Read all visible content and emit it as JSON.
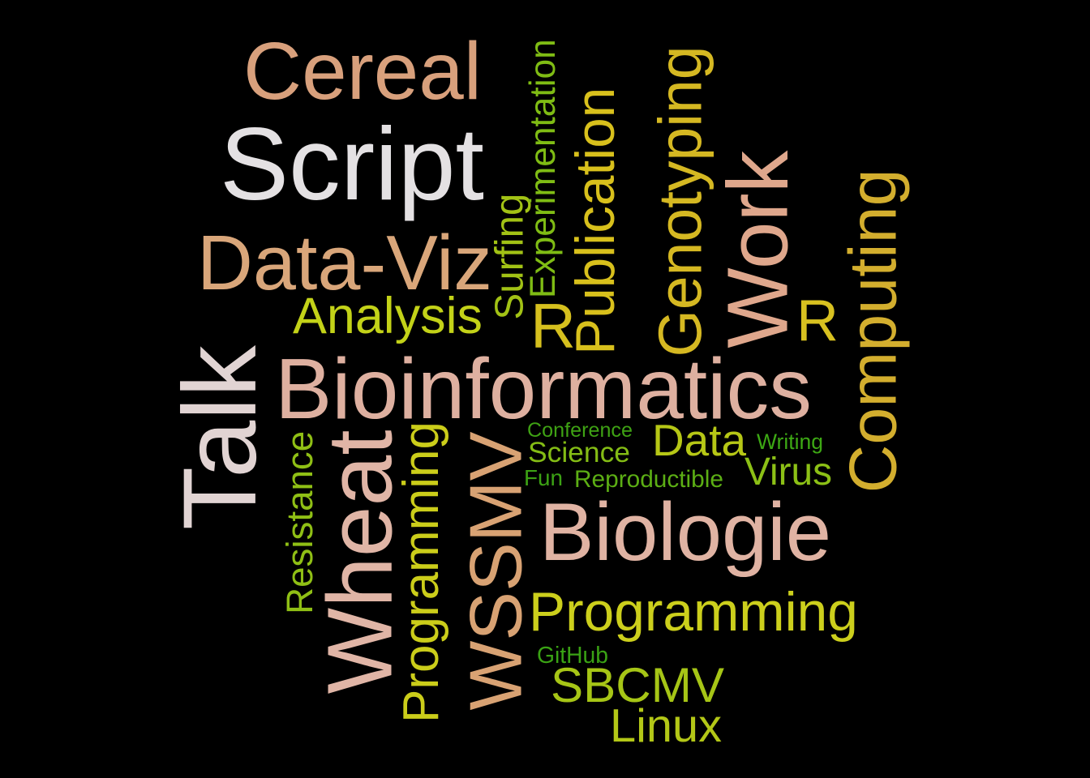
{
  "words": [
    {
      "text": "Cereal",
      "color": "#d8a07c"
    },
    {
      "text": "Script",
      "color": "#e4e1e3"
    },
    {
      "text": "Data-Viz",
      "color": "#d9a67a"
    },
    {
      "text": "Analysis",
      "color": "#c3d218"
    },
    {
      "text": "Surfing",
      "color": "#a2c215"
    },
    {
      "text": "Experimentation",
      "color": "#7fbc14"
    },
    {
      "text": "Publication",
      "color": "#d8c01c"
    },
    {
      "text": "R",
      "color": "#d6c01e"
    },
    {
      "text": "Genotyping",
      "color": "#d5b822"
    },
    {
      "text": "Work",
      "color": "#dfa78c"
    },
    {
      "text": "R",
      "color": "#d8c120"
    },
    {
      "text": "Computing",
      "color": "#d3ae2e"
    },
    {
      "text": "Talk",
      "color": "#e1d4d3"
    },
    {
      "text": "Bioinformatics",
      "color": "#deb0a0"
    },
    {
      "text": "Resistance",
      "color": "#8fbf15"
    },
    {
      "text": "Wheat",
      "color": "#e0b5a6"
    },
    {
      "text": "Programming",
      "color": "#cbcd1a"
    },
    {
      "text": "WSSMV",
      "color": "#d8a273"
    },
    {
      "text": "Conference",
      "color": "#3fa214"
    },
    {
      "text": "Science",
      "color": "#84bc15"
    },
    {
      "text": "Data",
      "color": "#b6c716"
    },
    {
      "text": "Writing",
      "color": "#3da814"
    },
    {
      "text": "Fun",
      "color": "#3ca214"
    },
    {
      "text": "Reproductible",
      "color": "#5cae14"
    },
    {
      "text": "Virus",
      "color": "#8cc016"
    },
    {
      "text": "Biologie",
      "color": "#e0b3a3"
    },
    {
      "text": "Programming",
      "color": "#cccf1c"
    },
    {
      "text": "GitHub",
      "color": "#3aa214"
    },
    {
      "text": "SBCMV",
      "color": "#a6c516"
    },
    {
      "text": "Linux",
      "color": "#b3c717"
    }
  ]
}
